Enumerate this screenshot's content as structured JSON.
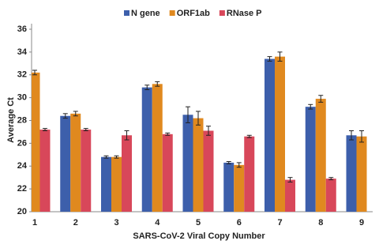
{
  "chart_data": {
    "type": "bar",
    "x_label": "SARS-CoV-2 Viral Copy Number",
    "y_label": "Average Ct",
    "categories": [
      "1",
      "2",
      "3",
      "4",
      "5",
      "6",
      "7",
      "8",
      "9"
    ],
    "series": [
      {
        "name": "N gene",
        "color": "#3d5fab",
        "values": [
          null,
          28.4,
          24.8,
          30.9,
          28.5,
          24.3,
          33.4,
          29.2,
          26.7
        ],
        "errors": [
          null,
          0.2,
          0.1,
          0.2,
          0.7,
          0.1,
          0.2,
          0.2,
          0.4
        ]
      },
      {
        "name": "ORF1ab",
        "color": "#e0891f",
        "values": [
          32.2,
          28.6,
          24.8,
          31.2,
          28.2,
          24.1,
          33.6,
          29.9,
          26.6
        ],
        "errors": [
          0.2,
          0.2,
          0.1,
          0.2,
          0.6,
          0.2,
          0.4,
          0.3,
          0.5
        ]
      },
      {
        "name": "RNase P",
        "color": "#d8475a",
        "values": [
          27.2,
          27.2,
          26.7,
          26.8,
          27.1,
          26.6,
          22.8,
          22.9,
          null
        ],
        "errors": [
          0.1,
          0.1,
          0.4,
          0.1,
          0.4,
          0.1,
          0.2,
          0.1,
          null
        ]
      }
    ],
    "ylim": [
      20,
      36
    ],
    "yticks": [
      20,
      22,
      24,
      26,
      28,
      30,
      32,
      34,
      36
    ],
    "grid": false,
    "legend": "top"
  }
}
